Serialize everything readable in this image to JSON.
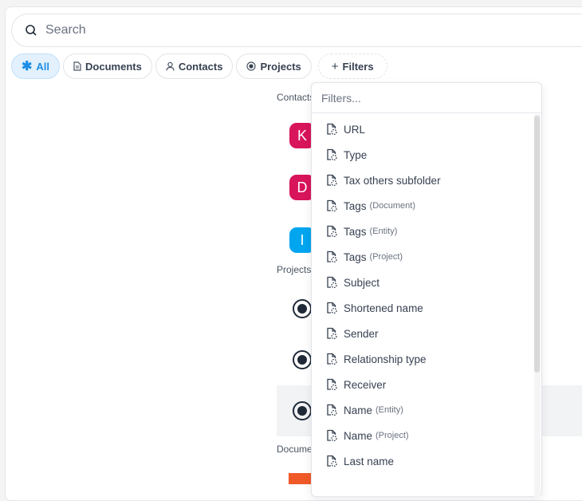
{
  "search": {
    "placeholder": "Search"
  },
  "chips": [
    {
      "label": "All",
      "icon": "asterisk-icon",
      "active": true
    },
    {
      "label": "Documents",
      "icon": "document-icon"
    },
    {
      "label": "Contacts",
      "icon": "person-icon"
    },
    {
      "label": "Projects",
      "icon": "project-icon"
    },
    {
      "label": "Filters",
      "icon": "plus-icon"
    }
  ],
  "sections": {
    "contacts": "Contacts",
    "projects": "Projects",
    "documents": "Documents"
  },
  "contacts": [
    {
      "initial": "K",
      "color": "#d8145a"
    },
    {
      "initial": "D",
      "color": "#d8145a"
    },
    {
      "initial": "I",
      "color": "#00a5f0"
    }
  ],
  "filters": {
    "placeholder": "Filters...",
    "items": [
      {
        "label": "URL",
        "qualifier": ""
      },
      {
        "label": "Type",
        "qualifier": ""
      },
      {
        "label": "Tax others subfolder",
        "qualifier": ""
      },
      {
        "label": "Tags",
        "qualifier": "(Document)"
      },
      {
        "label": "Tags",
        "qualifier": "(Entity)"
      },
      {
        "label": "Tags",
        "qualifier": "(Project)"
      },
      {
        "label": "Subject",
        "qualifier": ""
      },
      {
        "label": "Shortened name",
        "qualifier": ""
      },
      {
        "label": "Sender",
        "qualifier": ""
      },
      {
        "label": "Relationship type",
        "qualifier": ""
      },
      {
        "label": "Receiver",
        "qualifier": ""
      },
      {
        "label": "Name",
        "qualifier": "(Entity)"
      },
      {
        "label": "Name",
        "qualifier": "(Project)"
      },
      {
        "label": "Last name",
        "qualifier": ""
      }
    ]
  }
}
